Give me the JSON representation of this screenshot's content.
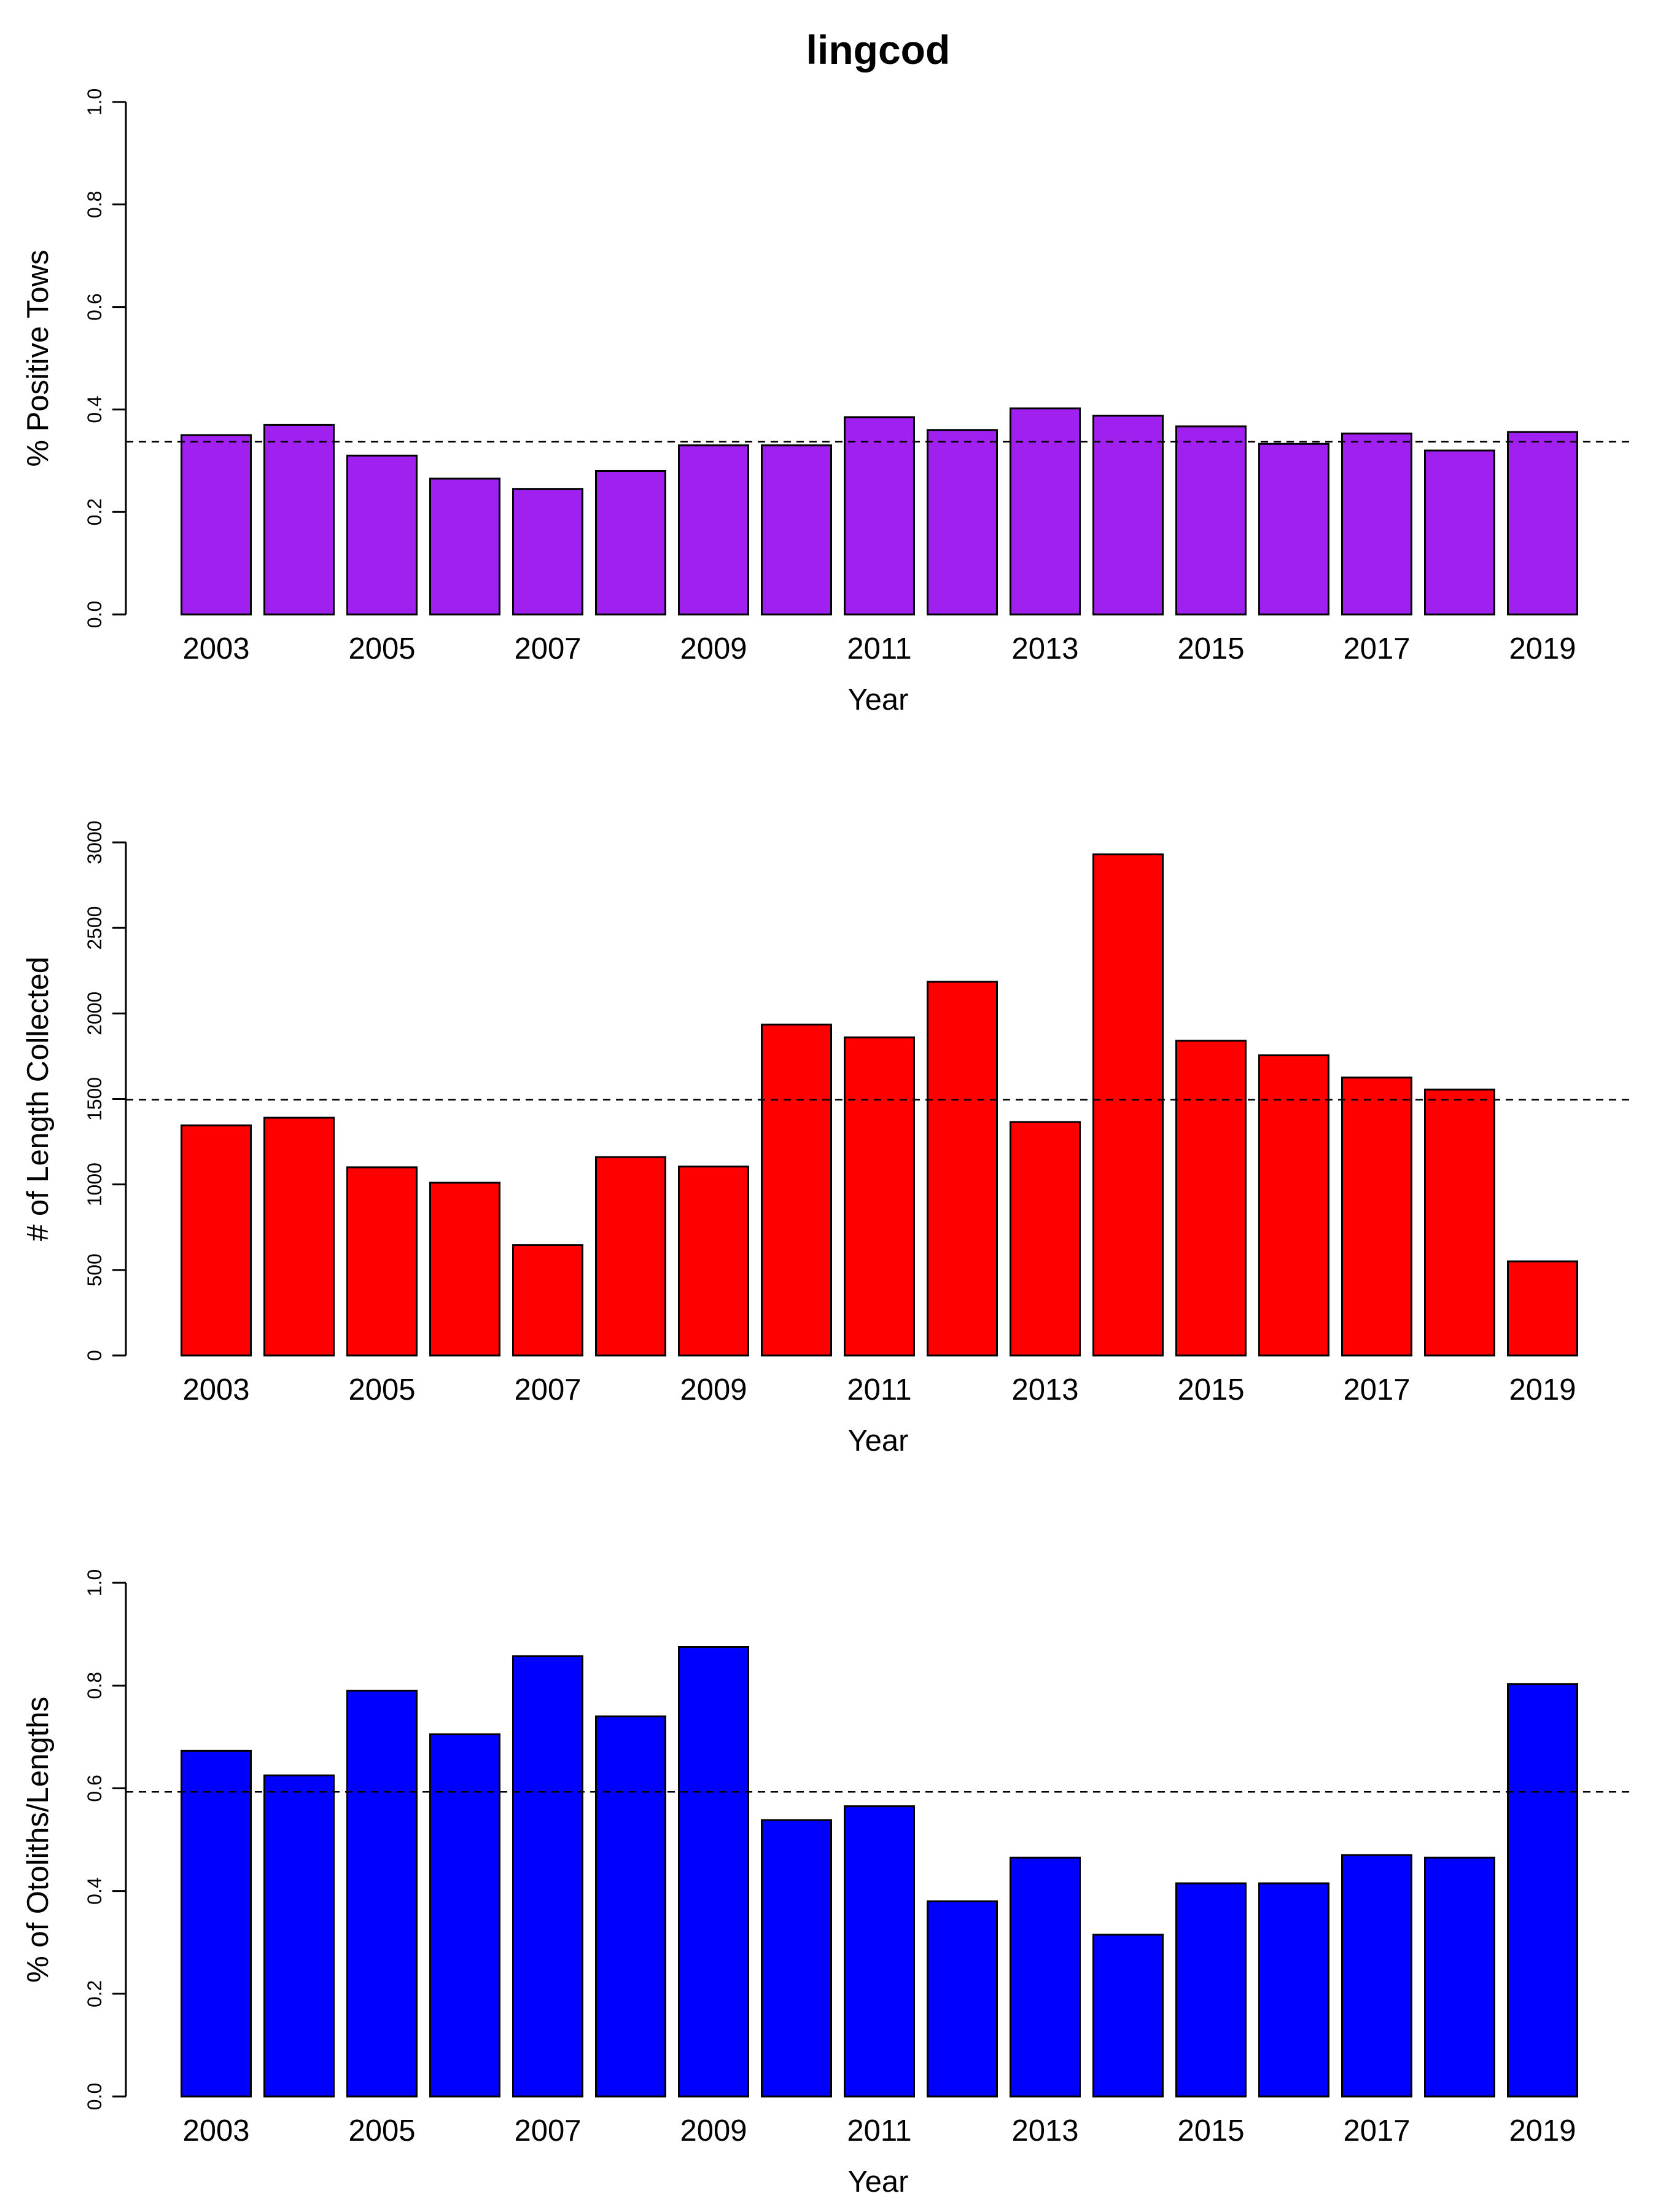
{
  "title": "lingcod",
  "chart_data": [
    {
      "type": "bar",
      "xlabel": "Year",
      "ylabel": "% Positive Tows",
      "ylim": [
        0,
        1.0
      ],
      "yticks": [
        "0.0",
        "0.2",
        "0.4",
        "0.6",
        "0.8",
        "1.0"
      ],
      "color": "#A020F0",
      "categories": [
        "2003",
        "2004",
        "2005",
        "2006",
        "2007",
        "2008",
        "2009",
        "2010",
        "2011",
        "2012",
        "2013",
        "2014",
        "2015",
        "2016",
        "2017",
        "2018",
        "2019"
      ],
      "x_tick_labels": [
        "2003",
        "2005",
        "2007",
        "2009",
        "2011",
        "2013",
        "2015",
        "2017",
        "2019"
      ],
      "values": [
        0.35,
        0.37,
        0.31,
        0.265,
        0.245,
        0.28,
        0.33,
        0.33,
        0.385,
        0.36,
        0.402,
        0.388,
        0.367,
        0.333,
        0.353,
        0.32,
        0.356
      ],
      "reference_line": 0.337,
      "grid": false
    },
    {
      "type": "bar",
      "xlabel": "Year",
      "ylabel": "# of Length Collected",
      "ylim": [
        0,
        3000
      ],
      "yticks": [
        "0",
        "500",
        "1000",
        "1500",
        "2000",
        "2500",
        "3000"
      ],
      "color": "#FF0000",
      "categories": [
        "2003",
        "2004",
        "2005",
        "2006",
        "2007",
        "2008",
        "2009",
        "2010",
        "2011",
        "2012",
        "2013",
        "2014",
        "2015",
        "2016",
        "2017",
        "2018",
        "2019"
      ],
      "x_tick_labels": [
        "2003",
        "2005",
        "2007",
        "2009",
        "2011",
        "2013",
        "2015",
        "2017",
        "2019"
      ],
      "values": [
        1345,
        1390,
        1100,
        1010,
        645,
        1160,
        1105,
        1935,
        1860,
        2185,
        1365,
        2930,
        1840,
        1755,
        1625,
        1555,
        550
      ],
      "reference_line": 1495,
      "grid": false
    },
    {
      "type": "bar",
      "xlabel": "Year",
      "ylabel": "% of Otoliths/Lengths",
      "ylim": [
        0,
        1.0
      ],
      "yticks": [
        "0.0",
        "0.2",
        "0.4",
        "0.6",
        "0.8",
        "1.0"
      ],
      "color": "#0000FF",
      "categories": [
        "2003",
        "2004",
        "2005",
        "2006",
        "2007",
        "2008",
        "2009",
        "2010",
        "2011",
        "2012",
        "2013",
        "2014",
        "2015",
        "2016",
        "2017",
        "2018",
        "2019"
      ],
      "x_tick_labels": [
        "2003",
        "2005",
        "2007",
        "2009",
        "2011",
        "2013",
        "2015",
        "2017",
        "2019"
      ],
      "values": [
        0.673,
        0.625,
        0.79,
        0.705,
        0.857,
        0.74,
        0.875,
        0.538,
        0.565,
        0.38,
        0.465,
        0.315,
        0.415,
        0.415,
        0.47,
        0.465,
        0.803
      ],
      "reference_line": 0.593,
      "grid": false
    }
  ]
}
